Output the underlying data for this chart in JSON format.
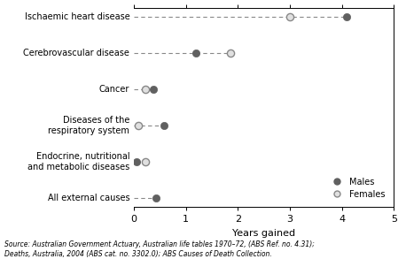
{
  "categories": [
    "All external causes",
    "Endocrine, nutritional\nand metabolic diseases",
    "Diseases of the\nrespiratory system",
    "Cancer",
    "Cerebrovascular disease",
    "Ischaemic heart disease"
  ],
  "males": [
    0.42,
    0.05,
    0.58,
    0.38,
    1.2,
    4.1
  ],
  "females": [
    null,
    0.22,
    0.08,
    0.22,
    1.85,
    3.0
  ],
  "dash_from_axis": [
    true,
    false,
    true,
    true,
    true,
    true
  ],
  "male_color": "#606060",
  "male_edge": "#606060",
  "female_face": "#e0e0e0",
  "female_edge": "#888888",
  "dash_color": "#888888",
  "xlabel": "Years gained",
  "xlim": [
    0,
    5
  ],
  "xticks": [
    0,
    1,
    2,
    3,
    4,
    5
  ],
  "source_text": "Source: Australian Government Actuary, Australian life tables 1970–72, (ABS Ref. no. 4.31);\nDeaths, Australia, 2004 (ABS cat. no. 3302.0); ABS Causes of Death Collection.",
  "legend_males": "Males",
  "legend_females": "Females",
  "marker_size": 35,
  "figsize": [
    4.58,
    2.93
  ],
  "dpi": 100
}
